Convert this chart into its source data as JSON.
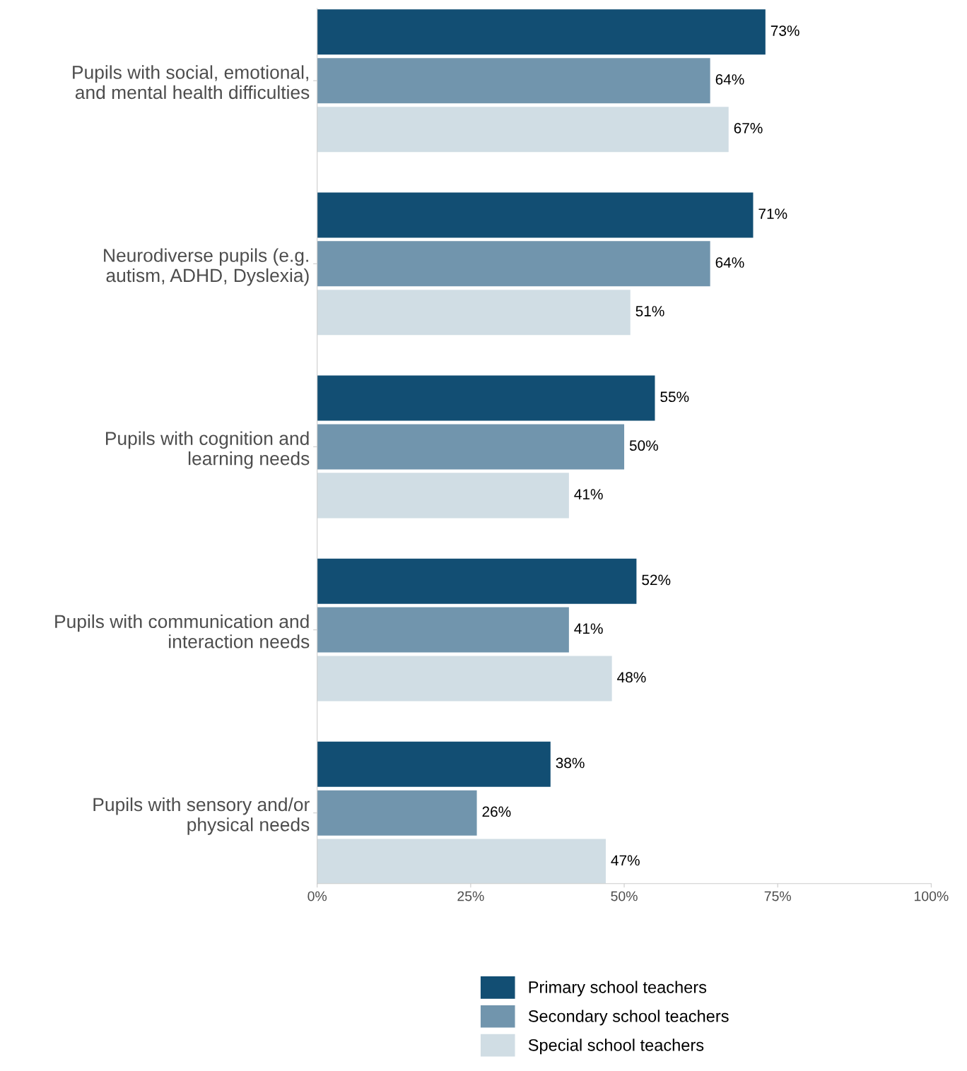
{
  "chart_data": {
    "type": "bar",
    "orientation": "horizontal",
    "categories": [
      "Pupils with social, emotional,\nand mental health difficulties",
      "Neurodiverse pupils (e.g.\nautism, ADHD, Dyslexia)",
      "Pupils with cognition and\nlearning needs",
      "Pupils with communication and\ninteraction needs",
      "Pupils with sensory and/or\nphysical needs"
    ],
    "series": [
      {
        "name": "Primary school teachers",
        "color": "#124e73",
        "values": [
          73,
          71,
          55,
          52,
          38
        ],
        "value_labels": [
          "73%",
          "71%",
          "55%",
          "52%",
          "38%"
        ]
      },
      {
        "name": "Secondary school teachers",
        "color": "#7195ad",
        "values": [
          64,
          64,
          50,
          41,
          26
        ],
        "value_labels": [
          "64%",
          "64%",
          "50%",
          "41%",
          "26%"
        ]
      },
      {
        "name": "Special school teachers",
        "color": "#d0dde4",
        "values": [
          67,
          51,
          41,
          48,
          47
        ],
        "value_labels": [
          "67%",
          "51%",
          "41%",
          "48%",
          "47%"
        ]
      }
    ],
    "xlim": [
      0,
      100
    ],
    "xticks": [
      {
        "value": 0,
        "label": "0%"
      },
      {
        "value": 25,
        "label": "25%"
      },
      {
        "value": 50,
        "label": "50%"
      },
      {
        "value": 75,
        "label": "75%"
      },
      {
        "value": 100,
        "label": "100%"
      }
    ],
    "grid": false,
    "legend": "bottom right"
  }
}
